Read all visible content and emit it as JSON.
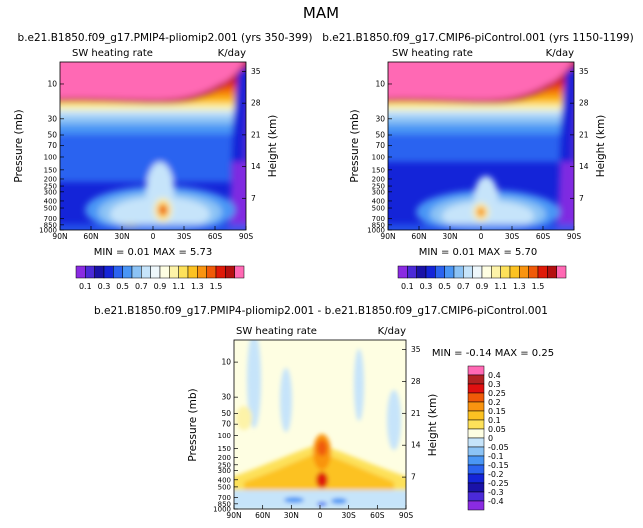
{
  "page_title": "MAM",
  "chart_data": [
    {
      "type": "heatmap",
      "id": "panel1",
      "title": "b.e21.B1850.f09_g17.PMIP4-pliomip2.001 (yrs 350-399)",
      "subtitle_left": "SW heating rate",
      "subtitle_right": "K/day",
      "ylabel": "Pressure (mb)",
      "ylabel_right": "Height (km)",
      "x_ticks": [
        "90N",
        "60N",
        "30N",
        "0",
        "30S",
        "60S",
        "90S"
      ],
      "y_ticks": [
        "10",
        "30",
        "50",
        "70",
        "100",
        "150",
        "200",
        "250",
        "300",
        "400",
        "500",
        "700",
        "850",
        "1000"
      ],
      "height_ticks": [
        "35",
        "28",
        "21",
        "14",
        "7"
      ],
      "stats": "MIN =     0.01    MAX =     5.73",
      "min": 0.01,
      "max": 5.73
    },
    {
      "type": "heatmap",
      "id": "panel2",
      "title": "b.e21.B1850.f09_g17.CMIP6-piControl.001 (yrs 1150-1199)",
      "subtitle_left": "SW heating rate",
      "subtitle_right": "K/day",
      "ylabel": "Pressure (mb)",
      "ylabel_right": "Height (km)",
      "x_ticks": [
        "90N",
        "60N",
        "30N",
        "0",
        "30S",
        "60S",
        "90S"
      ],
      "y_ticks": [
        "10",
        "30",
        "50",
        "70",
        "100",
        "150",
        "200",
        "250",
        "300",
        "400",
        "500",
        "700",
        "850",
        "1000"
      ],
      "height_ticks": [
        "35",
        "28",
        "21",
        "14",
        "7"
      ],
      "stats": "MIN =     0.01    MAX =     5.70",
      "min": 0.01,
      "max": 5.7
    },
    {
      "type": "heatmap",
      "id": "panel3",
      "title": "b.e21.B1850.f09_g17.PMIP4-pliomip2.001 - b.e21.B1850.f09_g17.CMIP6-piControl.001",
      "subtitle_left": "SW heating rate",
      "subtitle_right": "K/day",
      "ylabel": "Pressure (mb)",
      "ylabel_right": "Height (km)",
      "x_ticks": [
        "90N",
        "60N",
        "30N",
        "0",
        "30S",
        "60S",
        "90S"
      ],
      "y_ticks": [
        "10",
        "30",
        "50",
        "70",
        "100",
        "150",
        "200",
        "250",
        "300",
        "400",
        "500",
        "700",
        "850",
        "1000"
      ],
      "height_ticks": [
        "35",
        "28",
        "21",
        "14",
        "7"
      ],
      "stats": "MIN =   -0.14    MAX =    0.25",
      "min": -0.14,
      "max": 0.25
    }
  ],
  "colorbar_abs": {
    "labels": [
      "0.1",
      "0.3",
      "0.5",
      "0.7",
      "0.9",
      "1.1",
      "1.3",
      "1.5"
    ],
    "colors": [
      "#8a2be2",
      "#4b2ad8",
      "#1a12a8",
      "#1424d8",
      "#2b63f0",
      "#4a96f5",
      "#8cc3f5",
      "#c6e4fa",
      "#eef7fb",
      "#fefee2",
      "#fdf3a8",
      "#fde15a",
      "#fcc222",
      "#f99410",
      "#f05a08",
      "#df1a08",
      "#b40f0f",
      "#ff69b4"
    ]
  },
  "colorbar_diff": {
    "labels": [
      "0.4",
      "0.3",
      "0.25",
      "0.2",
      "0.15",
      "0.1",
      "0.05",
      "0",
      "-0.05",
      "-0.1",
      "-0.15",
      "-0.2",
      "-0.25",
      "-0.3",
      "-0.4"
    ],
    "colors": [
      "#ff69b4",
      "#b22222",
      "#e01010",
      "#f05a08",
      "#f99410",
      "#fcc222",
      "#fde15a",
      "#fefee2",
      "#c6e4fa",
      "#8cc3f5",
      "#4a96f5",
      "#2b63f0",
      "#1424d8",
      "#1a12a8",
      "#4b2ad8",
      "#8a2be2"
    ]
  }
}
